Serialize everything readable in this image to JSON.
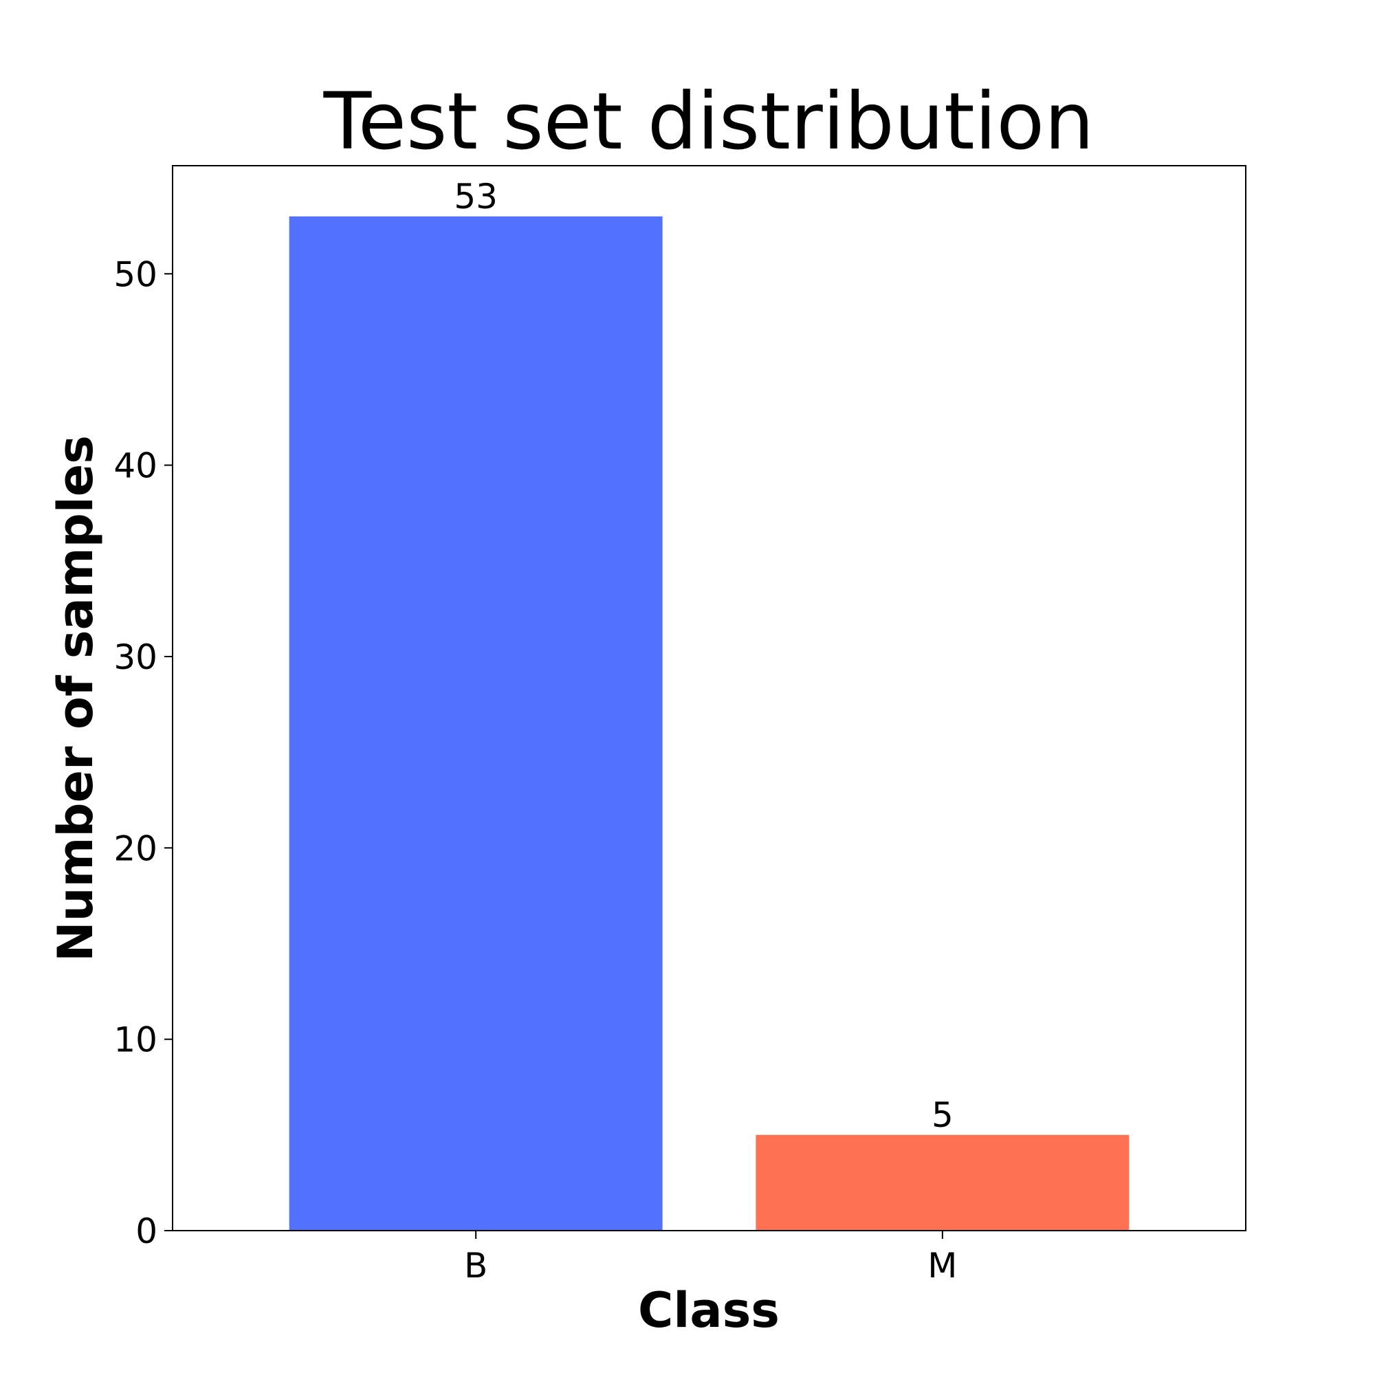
{
  "chart_data": {
    "type": "bar",
    "title": "Test set distribution",
    "xlabel": "Class",
    "ylabel": "Number of samples",
    "categories": [
      "B",
      "M"
    ],
    "values": [
      53,
      5
    ],
    "data_labels": [
      "53",
      "5"
    ],
    "bar_colors": [
      "#5271FF",
      "#FF7152"
    ],
    "yticks": [
      0,
      10,
      20,
      30,
      40,
      50
    ],
    "ytick_labels": [
      "0",
      "10",
      "20",
      "30",
      "40",
      "50"
    ],
    "ylim": [
      0,
      55.65
    ],
    "grid": false,
    "legend": "none"
  }
}
